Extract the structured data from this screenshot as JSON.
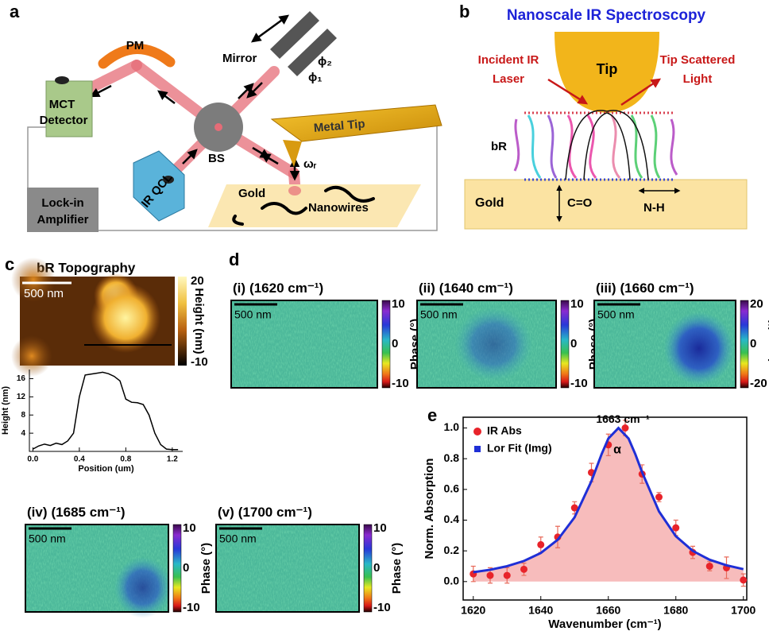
{
  "panel_a": {
    "label": "a",
    "pm": "PM",
    "mirror": "Mirror",
    "phi2": "ϕ₂",
    "phi1": "ϕ₁",
    "detector": [
      "MCT",
      "Detector"
    ],
    "bs": "BS",
    "metal_tip": "Metal Tip",
    "omega": "ωᵣ",
    "source": "IR QCL",
    "gold": "Gold",
    "nanowires": "Nanowires",
    "lockin": [
      "Lock-in",
      "Amplifier"
    ]
  },
  "panel_b": {
    "label": "b",
    "title": "Nanoscale IR Spectroscopy",
    "tip": "Tip",
    "incident": [
      "Incident IR",
      "Laser"
    ],
    "scattered": [
      "Tip Scattered",
      "Light"
    ],
    "br": "bR",
    "gold": "Gold",
    "co": "C=O",
    "nh": "N-H"
  },
  "panel_c": {
    "label": "c",
    "title": "bR Topography",
    "scale_bar": "500 nm",
    "colorbar_label": "Height (nm)",
    "colorbar_ticks": [
      20,
      -10
    ]
  },
  "panel_d": {
    "label": "d",
    "maps": [
      {
        "index": "(i)",
        "title": "(1620 cm⁻¹)",
        "scale_bar": "500 nm",
        "colorbar_label": "Phase (°)",
        "colorbar_ticks": [
          10,
          0,
          -10
        ]
      },
      {
        "index": "(ii)",
        "title": "(1640 cm⁻¹)",
        "scale_bar": "500 nm",
        "colorbar_label": "Phase (°)",
        "colorbar_ticks": [
          10,
          0,
          -10
        ]
      },
      {
        "index": "(iii)",
        "title": "(1660 cm⁻¹)",
        "scale_bar": "500 nm",
        "colorbar_label": "Phase (°)",
        "colorbar_ticks": [
          20,
          0,
          -20
        ]
      },
      {
        "index": "(iv)",
        "title": "(1685 cm⁻¹)",
        "scale_bar": "500 nm",
        "colorbar_label": "Phase (°)",
        "colorbar_ticks": [
          10,
          0,
          -10
        ]
      },
      {
        "index": "(v)",
        "title": "(1700 cm⁻¹)",
        "scale_bar": "500 nm",
        "colorbar_label": "Phase (°)",
        "colorbar_ticks": [
          10,
          0,
          -10
        ]
      }
    ]
  },
  "panel_e": {
    "label": "e"
  },
  "chart_data": [
    {
      "type": "line",
      "xlabel": "Position (um)",
      "ylabel": "Height (nm)",
      "x": [
        0,
        0.05,
        0.1,
        0.15,
        0.2,
        0.25,
        0.3,
        0.35,
        0.4,
        0.45,
        0.5,
        0.55,
        0.6,
        0.65,
        0.7,
        0.75,
        0.8,
        0.85,
        0.9,
        0.95,
        1.0,
        1.05,
        1.1,
        1.15,
        1.2,
        1.25
      ],
      "series": [
        {
          "color": "#000000",
          "values": [
            0.5,
            1.2,
            1.6,
            1.3,
            1.8,
            1.5,
            2.3,
            4,
            12,
            16.8,
            17,
            17.2,
            17.4,
            17.1,
            16.5,
            15.5,
            11.5,
            10.8,
            10.7,
            10.3,
            8,
            4,
            1.5,
            0.5,
            0.4,
            0.4
          ]
        }
      ],
      "xlim": [
        -0.03,
        1.29
      ],
      "ylim": [
        0,
        18
      ],
      "xticks": [
        {
          "value": 0,
          "label": "0.0"
        },
        {
          "value": 0.4,
          "label": "0.4"
        },
        {
          "value": 0.8,
          "label": "0.8"
        },
        {
          "value": 1.2,
          "label": "1.2"
        }
      ],
      "yticks": [
        4,
        8,
        12,
        16
      ]
    },
    {
      "type": "scatter",
      "xlabel": "Wavenumber (cm⁻¹)",
      "ylabel": "Norm. Absorption",
      "legend": "upper left",
      "annotations": [
        "1663 cm⁻¹",
        "α"
      ],
      "series": [
        {
          "name": "IR Abs",
          "type": "scatter",
          "color": "#e8232a",
          "errorbar_color": "#e86a5a",
          "x": [
            1620,
            1625,
            1630,
            1635,
            1640,
            1645,
            1650,
            1655,
            1660,
            1665,
            1670,
            1675,
            1680,
            1685,
            1690,
            1695,
            1700
          ],
          "values": [
            0.05,
            0.04,
            0.04,
            0.08,
            0.24,
            0.29,
            0.48,
            0.71,
            0.89,
            1.0,
            0.7,
            0.55,
            0.35,
            0.19,
            0.1,
            0.09,
            0.01
          ],
          "errors": [
            0.05,
            0.05,
            0.05,
            0.04,
            0.05,
            0.07,
            0.04,
            0.06,
            0.07,
            0.05,
            0.06,
            0.03,
            0.05,
            0.04,
            0.03,
            0.07,
            0.04
          ]
        },
        {
          "name": "Lor Fit (Img)",
          "type": "line",
          "color": "#1f2fd6",
          "fill_color": "#f7bcbc",
          "x": [
            1620,
            1625,
            1630,
            1635,
            1640,
            1645,
            1650,
            1655,
            1658,
            1660,
            1663,
            1666,
            1668,
            1670,
            1675,
            1680,
            1685,
            1690,
            1695,
            1700
          ],
          "values": [
            0.061,
            0.077,
            0.1,
            0.134,
            0.186,
            0.272,
            0.418,
            0.654,
            0.829,
            0.931,
            1.0,
            0.931,
            0.829,
            0.712,
            0.457,
            0.295,
            0.2,
            0.142,
            0.106,
            0.081
          ]
        }
      ],
      "xlim": [
        1617,
        1701
      ],
      "ylim": [
        -0.12,
        1.07
      ],
      "xticks": [
        1620,
        1640,
        1660,
        1680,
        1700
      ],
      "yticks": [
        {
          "value": 0,
          "label": "0.0"
        },
        {
          "value": 0.2,
          "label": "0.2"
        },
        {
          "value": 0.4,
          "label": "0.4"
        },
        {
          "value": 0.6,
          "label": "0.6"
        },
        {
          "value": 0.8,
          "label": "0.8"
        },
        {
          "value": 1.0,
          "label": "1.0"
        }
      ]
    }
  ]
}
